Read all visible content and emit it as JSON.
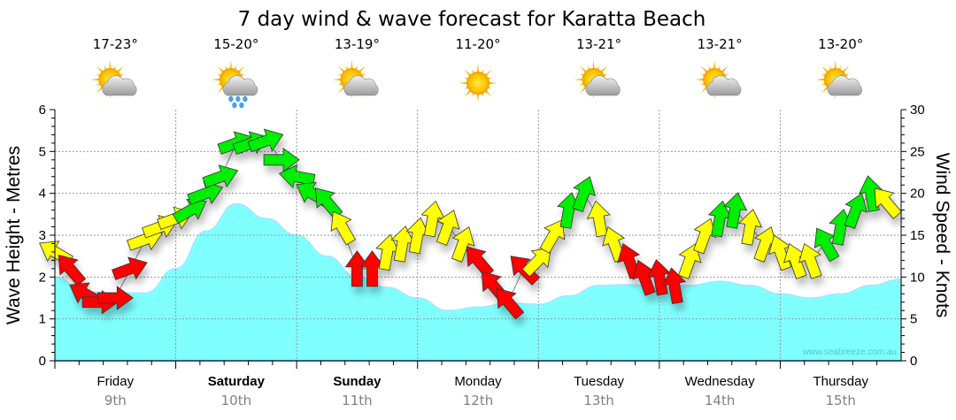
{
  "chart_data": {
    "type": "area",
    "title": "7 day wind & wave forecast for Karatta Beach",
    "ylabel_left": "Wave Height - Metres",
    "ylabel_right": "Wind Speed - Knots",
    "ylim_left": [
      0,
      6
    ],
    "ylim_right": [
      0,
      30
    ],
    "yticks_left": [
      "0",
      "1",
      "2",
      "3",
      "4",
      "5",
      "6"
    ],
    "yticks_right": [
      "0",
      "5",
      "10",
      "15",
      "20",
      "25",
      "30"
    ],
    "grid": true,
    "days": [
      {
        "name": "Friday",
        "date": "9th",
        "bold": false,
        "temp": "17-23°",
        "weather": "partly-cloudy"
      },
      {
        "name": "Saturday",
        "date": "10th",
        "bold": true,
        "temp": "15-20°",
        "weather": "showers"
      },
      {
        "name": "Sunday",
        "date": "11th",
        "bold": true,
        "temp": "13-19°",
        "weather": "partly-cloudy"
      },
      {
        "name": "Monday",
        "date": "12th",
        "bold": false,
        "temp": "11-20°",
        "weather": "sunny"
      },
      {
        "name": "Tuesday",
        "date": "13th",
        "bold": false,
        "temp": "13-21°",
        "weather": "partly-cloudy"
      },
      {
        "name": "Wednesday",
        "date": "14th",
        "bold": false,
        "temp": "13-21°",
        "weather": "partly-cloudy"
      },
      {
        "name": "Thursday",
        "date": "15th",
        "bold": false,
        "temp": "13-20°",
        "weather": "partly-cloudy"
      }
    ],
    "wave_series": {
      "name": "Wave Height",
      "units": "m",
      "hours": [
        0,
        6,
        12,
        18,
        24,
        30,
        36,
        42,
        48,
        54,
        60,
        66,
        72,
        78,
        84,
        90,
        96,
        102,
        108,
        114,
        120,
        126,
        132,
        138,
        144,
        150,
        156,
        162,
        168
      ],
      "values": [
        2.0,
        1.65,
        1.62,
        1.62,
        2.2,
        3.1,
        3.75,
        3.4,
        3.0,
        2.5,
        2.0,
        1.75,
        1.5,
        1.2,
        1.28,
        1.38,
        1.35,
        1.55,
        1.8,
        1.82,
        1.75,
        1.8,
        1.9,
        1.8,
        1.6,
        1.5,
        1.6,
        1.8,
        1.95
      ]
    },
    "wind_series": {
      "name": "Wind Speed",
      "units": "knots",
      "hours": [
        0,
        3,
        6,
        9,
        12,
        15,
        18,
        21,
        24,
        27,
        30,
        33,
        36,
        39,
        42,
        45,
        48,
        51,
        54,
        57,
        60,
        63,
        66,
        69,
        72,
        75,
        78,
        81,
        84,
        87,
        90,
        93,
        96,
        99,
        102,
        105,
        108,
        111,
        114,
        117,
        120,
        123,
        126,
        129,
        132,
        135,
        138,
        141,
        144,
        147,
        150,
        153,
        156,
        159,
        162,
        165
      ],
      "speeds": [
        13,
        11,
        8,
        7,
        7.5,
        11,
        14.5,
        16,
        17,
        18,
        20,
        22,
        26,
        26,
        26.3,
        24,
        22,
        20,
        19,
        16,
        11,
        11,
        13,
        14,
        15,
        17,
        16,
        14,
        12,
        9,
        7,
        11,
        12,
        15,
        18,
        20,
        17,
        14,
        12,
        10,
        10,
        9,
        12,
        15,
        17,
        18,
        16,
        14,
        13,
        12,
        12,
        14,
        16,
        18,
        20,
        19
      ],
      "directions_deg": [
        300,
        320,
        300,
        270,
        270,
        250,
        250,
        250,
        250,
        240,
        250,
        250,
        250,
        250,
        250,
        270,
        280,
        300,
        320,
        330,
        0,
        0,
        10,
        10,
        10,
        10,
        20,
        20,
        320,
        320,
        320,
        315,
        45,
        30,
        10,
        20,
        350,
        340,
        340,
        340,
        350,
        350,
        20,
        20,
        10,
        10,
        10,
        20,
        340,
        340,
        340,
        330,
        10,
        20,
        350,
        320
      ],
      "colour_class": [
        "yellow",
        "red",
        "red",
        "red",
        "red",
        "red",
        "yellow",
        "yellow",
        "yellow",
        "green",
        "green",
        "green",
        "green",
        "green",
        "green",
        "green",
        "green",
        "green",
        "green",
        "yellow",
        "red",
        "red",
        "yellow",
        "yellow",
        "yellow",
        "yellow",
        "yellow",
        "yellow",
        "red",
        "red",
        "red",
        "red",
        "yellow",
        "yellow",
        "green",
        "green",
        "yellow",
        "yellow",
        "red",
        "red",
        "red",
        "red",
        "yellow",
        "yellow",
        "green",
        "green",
        "yellow",
        "yellow",
        "yellow",
        "yellow",
        "yellow",
        "green",
        "green",
        "green",
        "green",
        "yellow"
      ]
    },
    "colours": {
      "wave_fill": "#80ffff",
      "wave_line": "#a0e8ff",
      "wind_red": "#ff0000",
      "wind_yellow": "#ffff00",
      "wind_green": "#00ee00",
      "grid": "#999999"
    },
    "watermark": "www.seabreeze.com.au"
  }
}
